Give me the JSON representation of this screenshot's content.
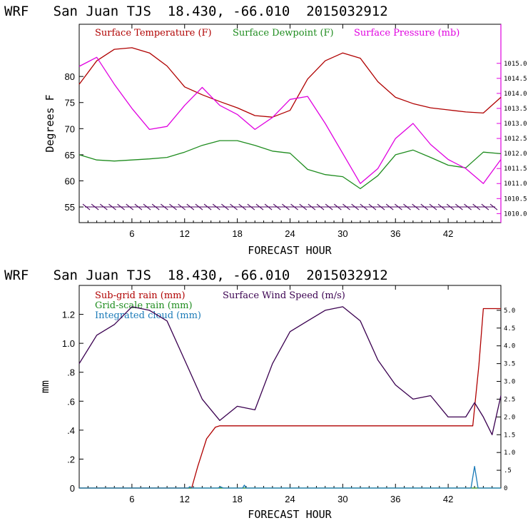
{
  "chart_data": [
    {
      "type": "line",
      "title": "WRF   San Juan TJS  18.430, -66.010  2015032912",
      "xlabel": "FORECAST HOUR",
      "ylabel": "Degrees F",
      "xlim": [
        0,
        48
      ],
      "ylim": [
        52,
        90
      ],
      "y2lim": [
        1009.7,
        1016.3
      ],
      "xticks": [
        6,
        12,
        18,
        24,
        30,
        36,
        42
      ],
      "xtick_labels": [
        "6",
        "12",
        "18",
        "24",
        "30",
        "36",
        "42"
      ],
      "yticks": [
        55,
        60,
        65,
        70,
        75,
        80
      ],
      "ytick_labels": [
        "55",
        "60",
        "65",
        "70",
        "75",
        "80"
      ],
      "y2ticks": [
        1010.0,
        1010.5,
        1011.0,
        1011.5,
        1012.0,
        1012.5,
        1013.0,
        1013.5,
        1014.0,
        1014.5,
        1015.0
      ],
      "y2tick_labels": [
        "1010.0",
        "1010.5",
        "1011.0",
        "1011.5",
        "1012.0",
        "1012.5",
        "1013.0",
        "1013.5",
        "1014.0",
        "1014.5",
        "1015.0"
      ],
      "x": [
        0,
        2,
        4,
        6,
        8,
        10,
        12,
        14,
        16,
        18,
        20,
        22,
        24,
        26,
        28,
        30,
        32,
        34,
        36,
        38,
        40,
        42,
        44,
        46,
        48
      ],
      "series": [
        {
          "name": "Surface Temperature (F)",
          "color": "#b00000",
          "axis": "left",
          "values": [
            78.5,
            83.0,
            85.2,
            85.5,
            84.5,
            82.0,
            78.0,
            76.5,
            75.2,
            74.0,
            72.5,
            72.2,
            73.5,
            79.5,
            83.0,
            84.5,
            83.5,
            79.0,
            76.0,
            74.8,
            74.0,
            73.6,
            73.2,
            73.0,
            76.0
          ]
        },
        {
          "name": "Surface Dewpoint (F)",
          "color": "#1e8c1e",
          "axis": "left",
          "values": [
            65.0,
            64.0,
            63.8,
            64.0,
            64.2,
            64.5,
            65.5,
            66.8,
            67.7,
            67.7,
            66.8,
            65.7,
            65.3,
            62.2,
            61.2,
            60.8,
            58.5,
            61.0,
            65.0,
            65.9,
            64.5,
            63.0,
            62.5,
            65.5,
            65.2
          ]
        },
        {
          "name": "Surface Pressure (mb)",
          "color": "#e000e0",
          "axis": "right",
          "values": [
            1014.9,
            1015.2,
            1014.3,
            1013.5,
            1012.8,
            1012.9,
            1013.6,
            1014.2,
            1013.6,
            1013.3,
            1012.8,
            1013.2,
            1013.8,
            1013.9,
            1013.0,
            1012.0,
            1011.0,
            1011.5,
            1012.5,
            1013.0,
            1012.3,
            1011.8,
            1011.5,
            1011.0,
            1011.8
          ]
        }
      ],
      "legend": [
        {
          "label": "Surface Temperature (F)",
          "color": "#b00000"
        },
        {
          "label": "Surface Dewpoint (F)",
          "color": "#1e8c1e"
        },
        {
          "label": "Surface Pressure (mb)",
          "color": "#e000e0"
        }
      ],
      "wind_barbs": {
        "y_level": 55,
        "count": 48,
        "color": "#4a0060"
      }
    },
    {
      "type": "line",
      "title": "WRF   San Juan TJS  18.430, -66.010  2015032912",
      "xlabel": "FORECAST HOUR",
      "ylabel": "mm",
      "xlim": [
        0,
        48
      ],
      "ylim": [
        0,
        1.4
      ],
      "y2lim": [
        0,
        5.7
      ],
      "xticks": [
        6,
        12,
        18,
        24,
        30,
        36,
        42
      ],
      "xtick_labels": [
        "6",
        "12",
        "18",
        "24",
        "30",
        "36",
        "42"
      ],
      "yticks": [
        0,
        0.2,
        0.4,
        0.6,
        0.8,
        1.0,
        1.2
      ],
      "ytick_labels": [
        "0",
        ".2",
        ".4",
        ".6",
        ".8",
        "1.0",
        "1.2"
      ],
      "y2ticks": [
        0,
        0.5,
        1.0,
        1.5,
        2.0,
        2.5,
        3.0,
        3.5,
        4.0,
        4.5,
        5.0
      ],
      "y2tick_labels": [
        "0",
        ".5",
        "1.0",
        "1.5",
        "2.0",
        "2.5",
        "3.0",
        "3.5",
        "4.0",
        "4.5",
        "5.0"
      ],
      "series": [
        {
          "name": "Sub-grid rain (mm)",
          "color": "#b00000",
          "axis": "left",
          "x": [
            0,
            12.8,
            13.5,
            14.5,
            15.5,
            16.0,
            44.8,
            45.5,
            46.0,
            47.0,
            48.0
          ],
          "values": [
            0,
            0,
            0.15,
            0.34,
            0.42,
            0.43,
            0.43,
            0.85,
            1.24,
            1.24,
            1.24
          ]
        },
        {
          "name": "Grid-scale rain (mm)",
          "color": "#1e8c1e",
          "axis": "left",
          "x": [
            0,
            48
          ],
          "values": [
            0,
            0
          ]
        },
        {
          "name": "Integrated cloud (mm)",
          "color": "#1a7ab8",
          "axis": "left",
          "x": [
            0,
            12.4,
            12.6,
            12.8,
            15.8,
            16.1,
            16.4,
            18.6,
            18.8,
            19.0,
            44.6,
            45.0,
            45.4,
            48.0
          ],
          "values": [
            0,
            0,
            0.01,
            0,
            0,
            0.008,
            0,
            0,
            0.02,
            0,
            0,
            0.15,
            0,
            0
          ]
        },
        {
          "name": "Surface Wind Speed (m/s)",
          "color": "#3a0050",
          "axis": "right",
          "x": [
            0,
            2,
            4,
            6,
            8,
            10,
            12,
            14,
            16,
            18,
            20,
            22,
            24,
            26,
            28,
            30,
            32,
            34,
            36,
            38,
            40,
            42,
            44,
            45,
            46,
            47,
            48
          ],
          "values": [
            3.5,
            4.3,
            4.6,
            5.1,
            5.0,
            4.7,
            3.6,
            2.5,
            1.9,
            2.3,
            2.2,
            3.5,
            4.4,
            4.7,
            5.0,
            5.1,
            4.7,
            3.6,
            2.9,
            2.5,
            2.6,
            2.0,
            2.0,
            2.4,
            2.0,
            1.5,
            2.6
          ]
        }
      ],
      "legend": [
        {
          "label": "Sub-grid rain (mm)",
          "color": "#b00000"
        },
        {
          "label": "Surface Wind Speed (m/s)",
          "color": "#3a0050"
        },
        {
          "label": "Grid-scale rain (mm)",
          "color": "#1e8c1e"
        },
        {
          "label": "Integrated cloud (mm)",
          "color": "#1a7ab8"
        }
      ]
    }
  ]
}
